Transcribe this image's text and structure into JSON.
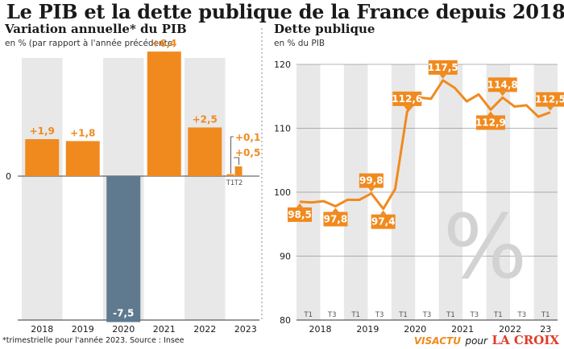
{
  "title": "Le PIB et la dette publique de la France depuis 2018",
  "footnote": "*trimestrielle pour l'année 2023. Source : Insee",
  "credit": {
    "visactu": "VISACTU",
    "pour": "pour",
    "brand": "LA CROIX"
  },
  "chart_data": [
    {
      "type": "bar",
      "title": "Variation annuelle* du PIB",
      "unit": "en % (par rapport à l'année précédente)",
      "categories": [
        "2018",
        "2019",
        "2020",
        "2021",
        "2022",
        "2023"
      ],
      "values": [
        1.9,
        1.8,
        -7.5,
        6.4,
        2.5,
        null
      ],
      "labels": [
        "+1,9",
        "+1,8",
        "-7,5",
        "+6,4",
        "+2,5",
        ""
      ],
      "quarters_2023": [
        {
          "name": "T1",
          "value": 0.1,
          "label": "+0,1"
        },
        {
          "name": "T2",
          "value": 0.5,
          "label": "+0,5"
        }
      ],
      "zero_label": "0",
      "colors": {
        "positive": "#f08a1e",
        "negative": "#5f7a8f",
        "band": "#e8e8e8"
      },
      "grid": false
    },
    {
      "type": "line",
      "title": "Dette publique",
      "unit": "en % du PIB",
      "ylim": [
        80,
        120
      ],
      "yticks": [
        80,
        90,
        100,
        110,
        120
      ],
      "series": [
        {
          "values": [
            98.5,
            98.4,
            98.6,
            97.8,
            98.8,
            98.8,
            99.8,
            97.4,
            100.5,
            112.6,
            114.8,
            114.6,
            117.5,
            116.3,
            114.2,
            115.3,
            112.9,
            114.8,
            113.4,
            113.6,
            111.8,
            112.5
          ]
        }
      ],
      "quarter_labels": [
        "T1",
        "T3",
        "T1",
        "T3",
        "T1",
        "T3",
        "T1",
        "T3",
        "T1",
        "T3",
        "T1"
      ],
      "year_labels": [
        "2018",
        "2019",
        "2020",
        "2021",
        "2022",
        "23"
      ],
      "point_labels": [
        {
          "index": 0,
          "label": "98,5",
          "pos": "below"
        },
        {
          "index": 3,
          "label": "97,8",
          "pos": "below"
        },
        {
          "index": 6,
          "label": "99,8",
          "pos": "above"
        },
        {
          "index": 7,
          "label": "97,4",
          "pos": "below"
        },
        {
          "index": 9,
          "label": "112,6",
          "pos": "above"
        },
        {
          "index": 12,
          "label": "117,5",
          "pos": "above"
        },
        {
          "index": 16,
          "label": "112,9",
          "pos": "below"
        },
        {
          "index": 17,
          "label": "114,8",
          "pos": "above"
        },
        {
          "index": 21,
          "label": "112,5",
          "pos": "above"
        }
      ],
      "watermark": "%",
      "colors": {
        "line": "#f08a1e",
        "band": "#e8e8e8",
        "grid": "#6e6e6e"
      }
    }
  ]
}
